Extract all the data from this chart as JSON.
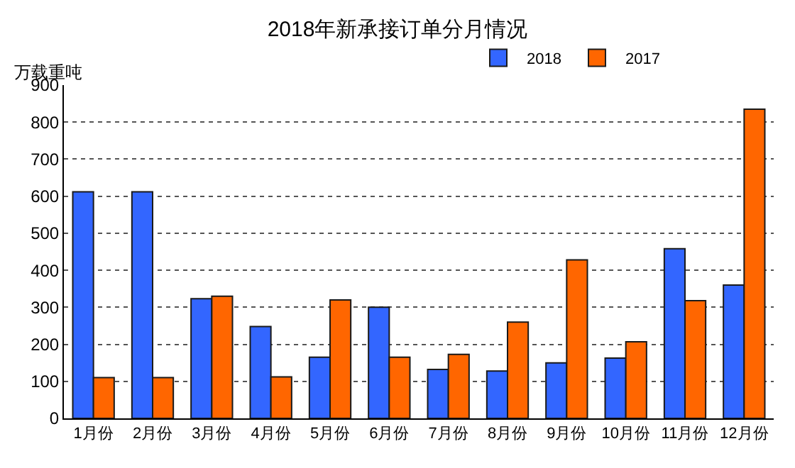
{
  "chart_data": {
    "type": "bar",
    "title": "2018年新承接订单分月情况",
    "ylabel": "万载重吨",
    "categories": [
      "1月份",
      "2月份",
      "3月份",
      "4月份",
      "5月份",
      "6月份",
      "7月份",
      "8月份",
      "9月份",
      "10月份",
      "11月份",
      "12月份"
    ],
    "series": [
      {
        "name": "2018",
        "color": "#3366ff",
        "values": [
          612,
          612,
          323,
          248,
          165,
          300,
          132,
          128,
          150,
          163,
          458,
          360
        ]
      },
      {
        "name": "2017",
        "color": "#ff6600",
        "values": [
          110,
          110,
          330,
          112,
          320,
          165,
          173,
          260,
          428,
          207,
          318,
          835
        ]
      }
    ],
    "ylim": [
      0,
      900
    ],
    "yticks": [
      0,
      100,
      200,
      300,
      400,
      500,
      600,
      700,
      800,
      900
    ],
    "grid": "y",
    "legend": "top right"
  }
}
